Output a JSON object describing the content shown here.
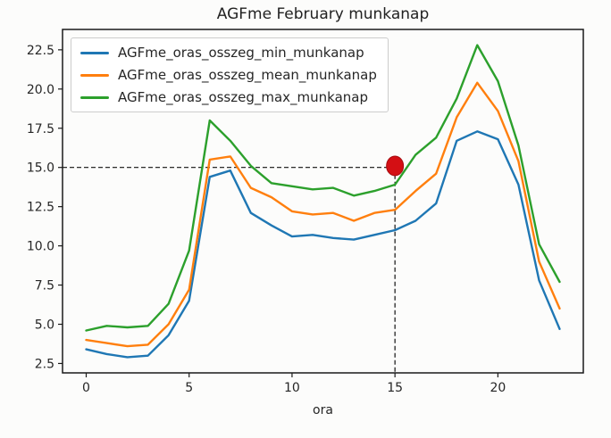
{
  "chart_data": {
    "type": "line",
    "title": "AGFme February munkanap",
    "xlabel": "ora",
    "ylabel": "",
    "x": [
      0,
      1,
      2,
      3,
      4,
      5,
      6,
      7,
      8,
      9,
      10,
      11,
      12,
      13,
      14,
      15,
      16,
      17,
      18,
      19,
      20,
      21,
      22,
      23
    ],
    "series": [
      {
        "name": "AGFme_oras_osszeg_min_munkanap",
        "color": "#1f77b4",
        "values": [
          3.4,
          3.1,
          2.9,
          3.0,
          4.3,
          6.5,
          14.4,
          14.8,
          12.1,
          11.3,
          10.6,
          10.7,
          10.5,
          10.4,
          10.7,
          11.0,
          11.6,
          12.7,
          16.7,
          17.3,
          16.8,
          13.9,
          7.8,
          4.7
        ]
      },
      {
        "name": "AGFme_oras_osszeg_mean_munkanap",
        "color": "#ff7f0e",
        "values": [
          4.0,
          3.8,
          3.6,
          3.7,
          5.0,
          7.2,
          15.5,
          15.7,
          13.7,
          13.1,
          12.2,
          12.0,
          12.1,
          11.6,
          12.1,
          12.3,
          13.5,
          14.6,
          18.2,
          20.4,
          18.6,
          15.4,
          9.0,
          6.0
        ]
      },
      {
        "name": "AGFme_oras_osszeg_max_munkanap",
        "color": "#2ca02c",
        "values": [
          4.6,
          4.9,
          4.8,
          4.9,
          6.3,
          9.7,
          18.0,
          16.7,
          15.1,
          14.0,
          13.8,
          13.6,
          13.7,
          13.2,
          13.5,
          13.9,
          15.8,
          16.9,
          19.4,
          22.8,
          20.5,
          16.4,
          10.1,
          7.7
        ]
      }
    ],
    "xticks": [
      "0",
      "5",
      "10",
      "15",
      "20"
    ],
    "yticks": [
      "2.5",
      "5.0",
      "7.5",
      "10.0",
      "12.5",
      "15.0",
      "17.5",
      "20.0",
      "22.5"
    ],
    "xlim": [
      -1.15,
      24.15
    ],
    "ylim": [
      1.9,
      23.8
    ],
    "grid": false,
    "legend_position": "upper left",
    "annotation": {
      "marker": {
        "x": 15,
        "y": 15.1,
        "color": "#d40f14",
        "shape": "ellipse"
      },
      "crosshair": {
        "x": 15,
        "y": 15.0,
        "style": "dashed",
        "color": "#111111"
      }
    },
    "colors": {
      "spine": "#1a1a1a",
      "background": "#fcfcfb"
    }
  }
}
